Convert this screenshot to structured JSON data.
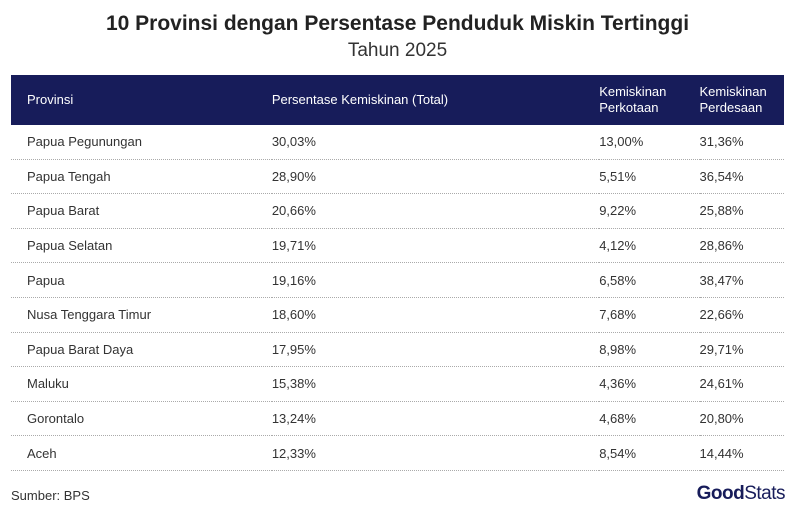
{
  "title": "10 Provinsi dengan Persentase Penduduk Miskin Tertinggi",
  "subtitle": "Tahun 2025",
  "table": {
    "headers": [
      "Provinsi",
      "Persentase Kemiskinan (Total)",
      "Kemiskinan Perkotaan",
      "Kemiskinan Perdesaan"
    ],
    "rows": [
      [
        "Papua Pegunungan",
        "30,03%",
        "13,00%",
        "31,36%"
      ],
      [
        "Papua Tengah",
        "28,90%",
        "5,51%",
        "36,54%"
      ],
      [
        "Papua Barat",
        "20,66%",
        "9,22%",
        "25,88%"
      ],
      [
        "Papua Selatan",
        "19,71%",
        "4,12%",
        "28,86%"
      ],
      [
        "Papua",
        "19,16%",
        "6,58%",
        "38,47%"
      ],
      [
        "Nusa Tenggara Timur",
        "18,60%",
        "7,68%",
        "22,66%"
      ],
      [
        "Papua Barat Daya",
        "17,95%",
        "8,98%",
        "29,71%"
      ],
      [
        "Maluku",
        "15,38%",
        "4,36%",
        "24,61%"
      ],
      [
        "Gorontalo",
        "13,24%",
        "4,68%",
        "20,80%"
      ],
      [
        "Aceh",
        "12,33%",
        "8,54%",
        "14,44%"
      ]
    ]
  },
  "source": "Sumber: BPS",
  "logo": {
    "bold": "Good",
    "light": "Stats"
  },
  "colors": {
    "header_bg": "#171c5a",
    "brand": "#171c5a"
  }
}
